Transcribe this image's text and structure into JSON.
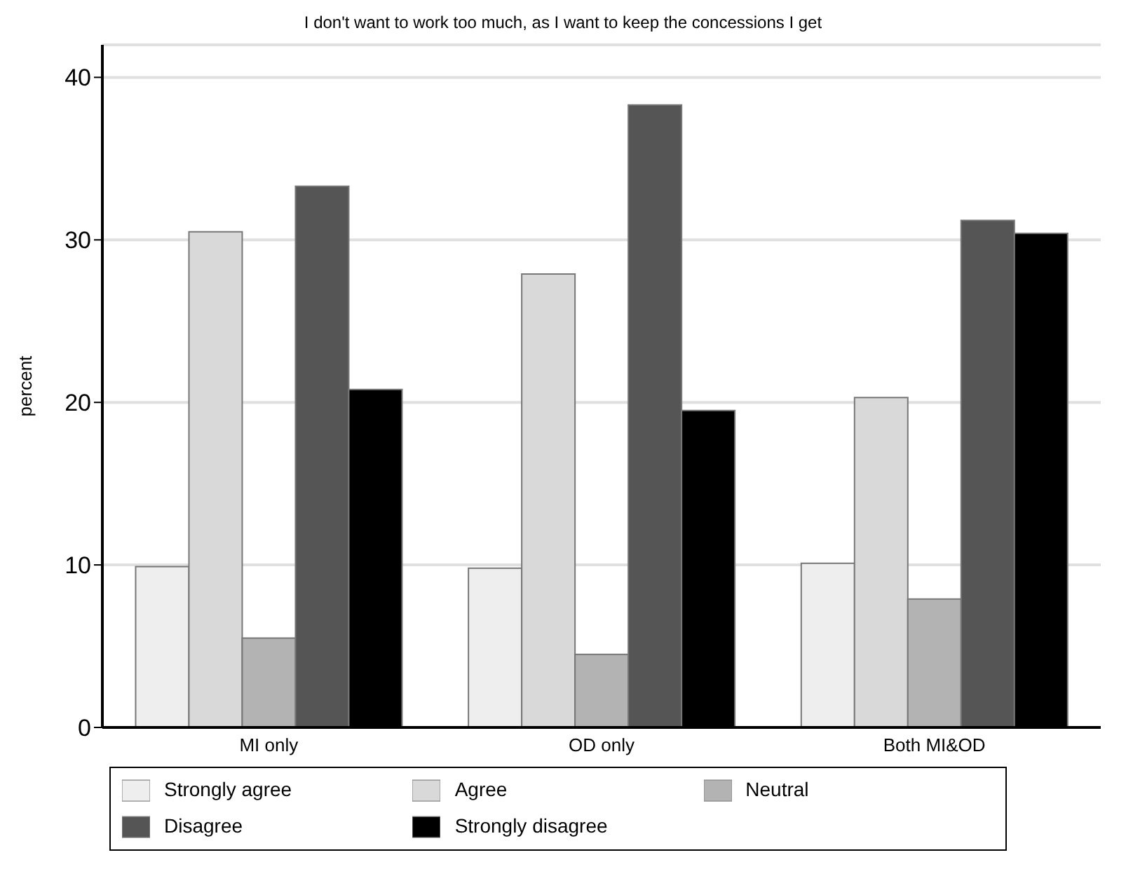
{
  "chart_data": {
    "type": "bar",
    "title": "I don't want to work too much, as I want to keep the concessions I get",
    "ylabel": "percent",
    "categories": [
      "MI only",
      "OD only",
      "Both MI&OD"
    ],
    "series": [
      {
        "name": "Strongly agree",
        "color": "#eeeeee",
        "values": [
          9.9,
          9.8,
          10.1
        ]
      },
      {
        "name": "Agree",
        "color": "#d9d9d9",
        "values": [
          30.5,
          27.9,
          20.3
        ]
      },
      {
        "name": "Neutral",
        "color": "#b3b3b3",
        "values": [
          5.5,
          4.5,
          7.9
        ]
      },
      {
        "name": "Disagree",
        "color": "#555555",
        "values": [
          33.3,
          38.3,
          31.2
        ]
      },
      {
        "name": "Strongly disagree",
        "color": "#000000",
        "values": [
          20.8,
          19.5,
          30.4
        ]
      }
    ],
    "ylim": [
      0,
      42
    ],
    "yticks": [
      0,
      10,
      20,
      30,
      40
    ],
    "grid": "y",
    "legend": "bottom"
  }
}
